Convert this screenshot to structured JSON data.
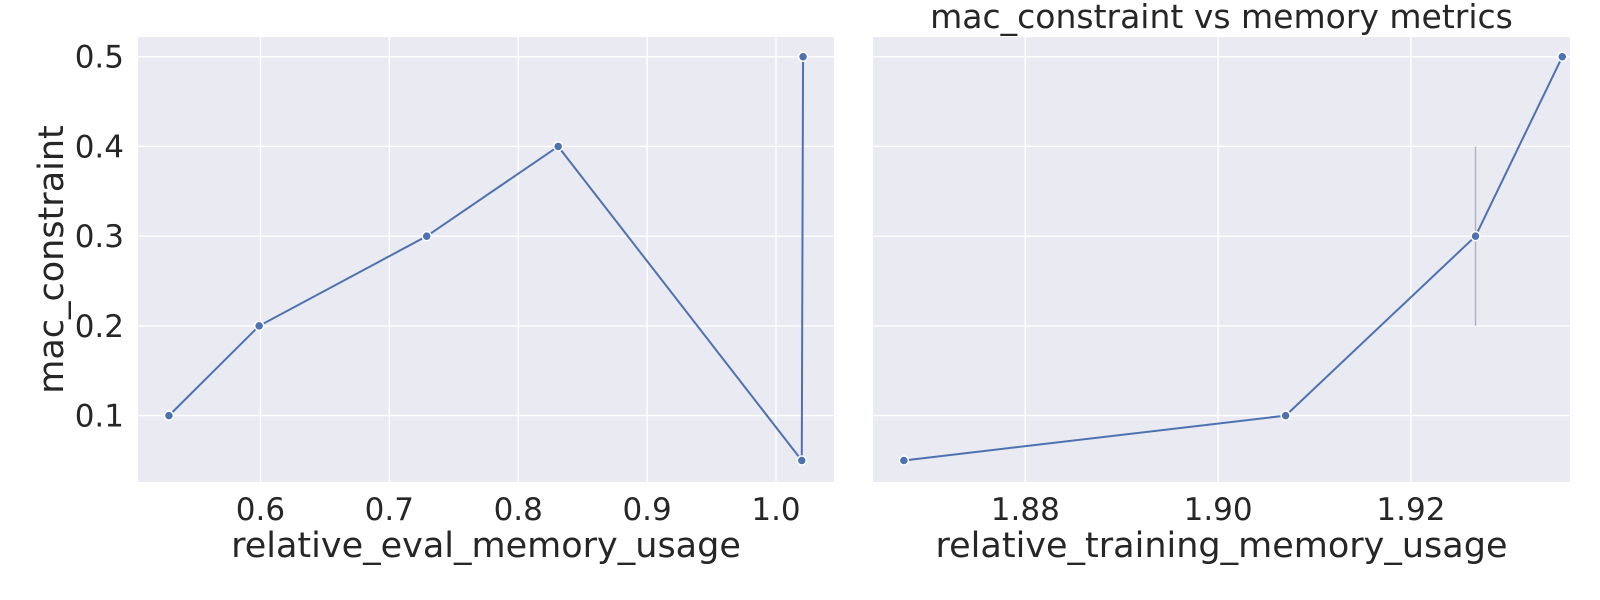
{
  "chart_data": [
    {
      "type": "line",
      "title": "",
      "xlabel": "relative_eval_memory_usage",
      "ylabel": "mac_constraint",
      "xlim": [
        0.505,
        1.045
      ],
      "ylim": [
        0.026,
        0.522
      ],
      "x_ticks": [
        {
          "value": 0.6,
          "label": "0.6"
        },
        {
          "value": 0.7,
          "label": "0.7"
        },
        {
          "value": 0.8,
          "label": "0.8"
        },
        {
          "value": 0.9,
          "label": "0.9"
        },
        {
          "value": 1.0,
          "label": "1.0"
        }
      ],
      "y_ticks": [
        {
          "value": 0.1,
          "label": "0.1"
        },
        {
          "value": 0.2,
          "label": "0.2"
        },
        {
          "value": 0.3,
          "label": "0.3"
        },
        {
          "value": 0.4,
          "label": "0.4"
        },
        {
          "value": 0.5,
          "label": "0.5"
        }
      ],
      "grid": true,
      "series": [
        {
          "color": "#4C72B0",
          "points": [
            {
              "x": 0.529,
              "y": 0.1
            },
            {
              "x": 0.599,
              "y": 0.2
            },
            {
              "x": 0.729,
              "y": 0.3
            },
            {
              "x": 0.831,
              "y": 0.4
            },
            {
              "x": 1.02,
              "y": 0.05
            },
            {
              "x": 1.021,
              "y": 0.5
            }
          ]
        }
      ],
      "error_bars": []
    },
    {
      "type": "line",
      "title": "mac_constraint vs memory metrics",
      "xlabel": "relative_training_memory_usage",
      "ylabel": "",
      "xlim": [
        1.8642,
        1.9365
      ],
      "ylim": [
        0.026,
        0.522
      ],
      "x_ticks": [
        {
          "value": 1.88,
          "label": "1.88"
        },
        {
          "value": 1.9,
          "label": "1.90"
        },
        {
          "value": 1.92,
          "label": "1.92"
        }
      ],
      "y_ticks": [
        {
          "value": 0.1,
          "label": ""
        },
        {
          "value": 0.2,
          "label": ""
        },
        {
          "value": 0.3,
          "label": ""
        },
        {
          "value": 0.4,
          "label": ""
        },
        {
          "value": 0.5,
          "label": ""
        }
      ],
      "grid": true,
      "series": [
        {
          "color": "#4C72B0",
          "points": [
            {
              "x": 1.8674,
              "y": 0.05
            },
            {
              "x": 1.907,
              "y": 0.1
            },
            {
              "x": 1.9267,
              "y": 0.3
            },
            {
              "x": 1.9357,
              "y": 0.5
            }
          ]
        }
      ],
      "error_bars": [
        {
          "x": 1.9267,
          "low": 0.2,
          "high": 0.4
        }
      ]
    }
  ]
}
